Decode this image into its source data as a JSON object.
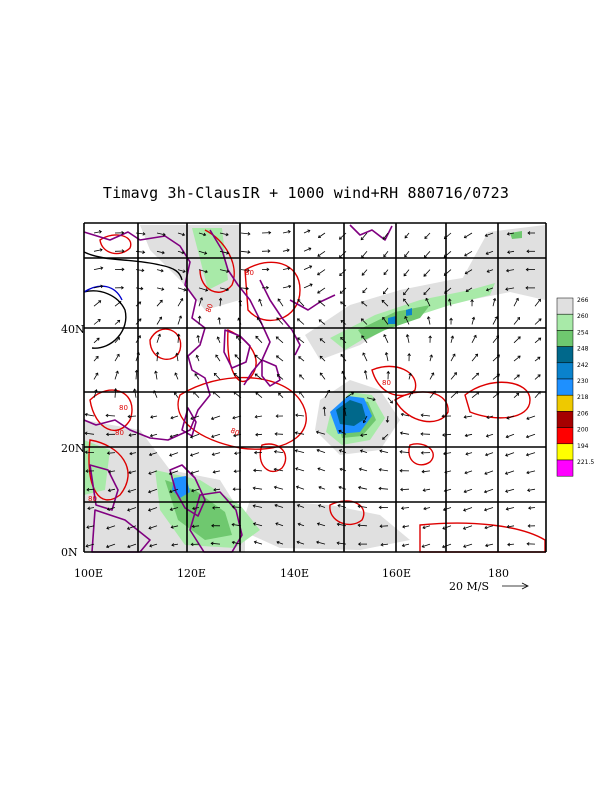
{
  "title": "Timavg 3h-ClausIR + 1000 wind+RH 880716/0723",
  "axes": {
    "x_ticks": [
      "100E",
      "120E",
      "140E",
      "160E",
      "180"
    ],
    "y_ticks": [
      "0N",
      "20N",
      "40N"
    ],
    "x_range_deg": [
      100,
      190
    ],
    "y_range_deg": [
      0,
      58
    ]
  },
  "vector_reference": {
    "label": "20 M/S"
  },
  "legend": [
    {
      "label": "266",
      "color": "#e0e0e0"
    },
    {
      "label": "260",
      "color": "#a8eaa8"
    },
    {
      "label": "254",
      "color": "#6fc86f"
    },
    {
      "label": "248",
      "color": "#00688b"
    },
    {
      "label": "242",
      "color": "#0a82cc"
    },
    {
      "label": "230",
      "color": "#1e90ff"
    },
    {
      "label": "218",
      "color": "#eec900"
    },
    {
      "label": "206",
      "color": "#a50000"
    },
    {
      "label": "200",
      "color": "#ff0000"
    },
    {
      "label": "194",
      "color": "#ffff00"
    },
    {
      "label": "221.5",
      "color": "#ff00ff"
    }
  ],
  "contour_labels": [
    "80",
    "80",
    "80",
    "80",
    "80",
    "80",
    "80"
  ],
  "colors": {
    "rh_contour": "#dd0000",
    "coastline": "#800080",
    "grid": "#000000"
  }
}
